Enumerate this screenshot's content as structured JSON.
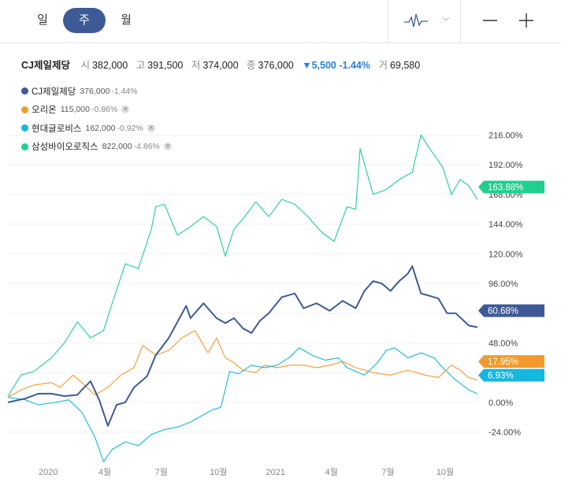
{
  "periods": [
    {
      "label": "일"
    },
    {
      "label": "주",
      "active": true
    },
    {
      "label": "월"
    }
  ],
  "toolbar": {
    "chart_type_icon": "line-wave-icon",
    "dropdown_icon": "chevron-down-icon",
    "zoom_out_icon": "minus-icon",
    "zoom_in_icon": "plus-icon"
  },
  "summary": {
    "name": "CJ제일제당",
    "open_label": "시",
    "open": "382,000",
    "high_label": "고",
    "high": "391,500",
    "low_label": "저",
    "low": "374,000",
    "close_label": "종",
    "close": "376,000",
    "change": "▼5,500 -1.44%",
    "volume_label": "거",
    "volume": "69,580"
  },
  "legend": [
    {
      "name": "CJ제일제당",
      "value": "376,000",
      "change": "-1.44%",
      "color": "#3e5a96",
      "removable": false
    },
    {
      "name": "오리온",
      "value": "115,000",
      "change": "-0.86%",
      "color": "#f39a2c",
      "removable": true
    },
    {
      "name": "현대글로비스",
      "value": "162,000",
      "change": "-0.92%",
      "color": "#14b7dd",
      "removable": true
    },
    {
      "name": "삼성바이오로직스",
      "value": "822,000",
      "change": "-4.86%",
      "color": "#1fcf8e",
      "removable": true
    }
  ],
  "chart_data": {
    "type": "line",
    "y_unit": "%",
    "ylim": [
      -44,
      236
    ],
    "y_ticks": [
      "216.00%",
      "192.00%",
      "168.00%",
      "144.00%",
      "120.00%",
      "96.00%",
      "72.00%",
      "48.00%",
      "24.00%",
      "0.00%",
      "-24.00%"
    ],
    "y_tick_values": [
      216,
      192,
      168,
      144,
      120,
      96,
      72,
      48,
      24,
      0,
      -24
    ],
    "x_range": [
      "2019-10-28",
      "2021-11-22"
    ],
    "x_ticks": [
      {
        "label": "2020",
        "date": "2020-01-01"
      },
      {
        "label": "4월",
        "date": "2020-04-01"
      },
      {
        "label": "7월",
        "date": "2020-07-01"
      },
      {
        "label": "10월",
        "date": "2020-10-01"
      },
      {
        "label": "2021",
        "date": "2021-01-01"
      },
      {
        "label": "4월",
        "date": "2021-04-01"
      },
      {
        "label": "7월",
        "date": "2021-07-01"
      },
      {
        "label": "10월",
        "date": "2021-10-01"
      }
    ],
    "grid": "horizontal",
    "series": [
      {
        "name": "CJ제일제당",
        "color": "#3e5a96",
        "last_label": "60.68%",
        "points": [
          [
            "2019-10-28",
            0
          ],
          [
            "2019-11-25",
            3
          ],
          [
            "2019-12-16",
            7
          ],
          [
            "2020-01-06",
            7
          ],
          [
            "2020-01-27",
            5
          ],
          [
            "2020-02-17",
            6
          ],
          [
            "2020-02-24",
            10
          ],
          [
            "2020-03-09",
            17
          ],
          [
            "2020-03-23",
            2
          ],
          [
            "2020-04-06",
            -19
          ],
          [
            "2020-04-20",
            -2
          ],
          [
            "2020-05-04",
            0
          ],
          [
            "2020-05-18",
            12
          ],
          [
            "2020-06-08",
            21
          ],
          [
            "2020-06-22",
            38
          ],
          [
            "2020-07-13",
            52
          ],
          [
            "2020-08-10",
            78
          ],
          [
            "2020-08-17",
            68
          ],
          [
            "2020-09-07",
            80
          ],
          [
            "2020-09-28",
            68
          ],
          [
            "2020-10-12",
            64
          ],
          [
            "2020-10-26",
            68
          ],
          [
            "2020-11-09",
            60
          ],
          [
            "2020-11-23",
            56
          ],
          [
            "2020-12-07",
            66
          ],
          [
            "2020-12-21",
            72
          ],
          [
            "2021-01-11",
            85
          ],
          [
            "2021-02-01",
            88
          ],
          [
            "2021-02-15",
            76
          ],
          [
            "2021-03-08",
            80
          ],
          [
            "2021-03-29",
            74
          ],
          [
            "2021-04-19",
            82
          ],
          [
            "2021-05-10",
            76
          ],
          [
            "2021-05-24",
            90
          ],
          [
            "2021-06-07",
            98
          ],
          [
            "2021-06-21",
            96
          ],
          [
            "2021-07-05",
            90
          ],
          [
            "2021-07-19",
            98
          ],
          [
            "2021-08-02",
            104
          ],
          [
            "2021-08-09",
            110
          ],
          [
            "2021-08-23",
            88
          ],
          [
            "2021-09-06",
            86
          ],
          [
            "2021-09-20",
            84
          ],
          [
            "2021-10-04",
            72
          ],
          [
            "2021-10-18",
            72
          ],
          [
            "2021-11-08",
            62
          ],
          [
            "2021-11-22",
            60.68
          ]
        ]
      },
      {
        "name": "오리온",
        "color": "#f39a2c",
        "last_label": "17.95%",
        "points": [
          [
            "2019-10-28",
            4
          ],
          [
            "2019-11-18",
            10
          ],
          [
            "2019-12-09",
            14
          ],
          [
            "2020-01-06",
            16
          ],
          [
            "2020-01-20",
            12
          ],
          [
            "2020-02-10",
            22
          ],
          [
            "2020-02-24",
            16
          ],
          [
            "2020-03-16",
            6
          ],
          [
            "2020-04-06",
            12
          ],
          [
            "2020-04-27",
            22
          ],
          [
            "2020-05-18",
            28
          ],
          [
            "2020-06-01",
            46
          ],
          [
            "2020-06-22",
            38
          ],
          [
            "2020-07-13",
            42
          ],
          [
            "2020-08-03",
            52
          ],
          [
            "2020-08-24",
            58
          ],
          [
            "2020-09-14",
            40
          ],
          [
            "2020-09-28",
            52
          ],
          [
            "2020-10-12",
            36
          ],
          [
            "2020-10-26",
            32
          ],
          [
            "2020-11-09",
            26
          ],
          [
            "2020-11-30",
            24
          ],
          [
            "2020-12-14",
            30
          ],
          [
            "2021-01-04",
            28
          ],
          [
            "2021-01-25",
            30
          ],
          [
            "2021-02-15",
            30
          ],
          [
            "2021-03-08",
            28
          ],
          [
            "2021-03-29",
            30
          ],
          [
            "2021-04-19",
            33
          ],
          [
            "2021-05-10",
            28
          ],
          [
            "2021-06-07",
            24
          ],
          [
            "2021-07-05",
            22
          ],
          [
            "2021-08-02",
            26
          ],
          [
            "2021-08-30",
            22
          ],
          [
            "2021-09-20",
            20
          ],
          [
            "2021-10-11",
            30
          ],
          [
            "2021-10-25",
            26
          ],
          [
            "2021-11-08",
            20
          ],
          [
            "2021-11-22",
            17.95
          ]
        ]
      },
      {
        "name": "현대글로비스",
        "color": "#14b7dd",
        "last_label": "6.93%",
        "points": [
          [
            "2019-10-28",
            4
          ],
          [
            "2019-11-25",
            2
          ],
          [
            "2019-12-16",
            -2
          ],
          [
            "2020-01-13",
            0
          ],
          [
            "2020-02-03",
            2
          ],
          [
            "2020-02-24",
            -8
          ],
          [
            "2020-03-16",
            -28
          ],
          [
            "2020-03-30",
            -48
          ],
          [
            "2020-04-13",
            -38
          ],
          [
            "2020-05-04",
            -32
          ],
          [
            "2020-05-25",
            -35
          ],
          [
            "2020-06-15",
            -26
          ],
          [
            "2020-07-06",
            -22
          ],
          [
            "2020-07-27",
            -20
          ],
          [
            "2020-08-17",
            -16
          ],
          [
            "2020-09-07",
            -10
          ],
          [
            "2020-09-21",
            -6
          ],
          [
            "2020-10-05",
            -4
          ],
          [
            "2020-10-19",
            25
          ],
          [
            "2020-11-02",
            23
          ],
          [
            "2020-11-23",
            30
          ],
          [
            "2020-12-14",
            28
          ],
          [
            "2021-01-04",
            30
          ],
          [
            "2021-01-25",
            37
          ],
          [
            "2021-02-08",
            44
          ],
          [
            "2021-03-01",
            38
          ],
          [
            "2021-03-22",
            34
          ],
          [
            "2021-04-12",
            36
          ],
          [
            "2021-04-26",
            28
          ],
          [
            "2021-05-24",
            22
          ],
          [
            "2021-06-14",
            32
          ],
          [
            "2021-06-28",
            42
          ],
          [
            "2021-07-12",
            44
          ],
          [
            "2021-08-02",
            36
          ],
          [
            "2021-08-23",
            40
          ],
          [
            "2021-09-13",
            36
          ],
          [
            "2021-09-27",
            28
          ],
          [
            "2021-10-18",
            18
          ],
          [
            "2021-11-08",
            10
          ],
          [
            "2021-11-22",
            6.93
          ]
        ]
      },
      {
        "name": "삼성바이오로직스",
        "color": "#1fcf8e",
        "last_label": "163.88%",
        "points": [
          [
            "2019-10-28",
            5
          ],
          [
            "2019-11-18",
            22
          ],
          [
            "2019-12-09",
            25
          ],
          [
            "2020-01-06",
            36
          ],
          [
            "2020-01-27",
            48
          ],
          [
            "2020-02-17",
            65
          ],
          [
            "2020-03-09",
            52
          ],
          [
            "2020-03-30",
            58
          ],
          [
            "2020-04-13",
            80
          ],
          [
            "2020-05-04",
            112
          ],
          [
            "2020-05-25",
            108
          ],
          [
            "2020-06-15",
            140
          ],
          [
            "2020-06-22",
            158
          ],
          [
            "2020-07-06",
            160
          ],
          [
            "2020-07-27",
            135
          ],
          [
            "2020-08-17",
            142
          ],
          [
            "2020-09-07",
            150
          ],
          [
            "2020-09-28",
            142
          ],
          [
            "2020-10-12",
            118
          ],
          [
            "2020-10-26",
            140
          ],
          [
            "2020-11-09",
            148
          ],
          [
            "2020-11-30",
            162
          ],
          [
            "2020-12-21",
            150
          ],
          [
            "2021-01-11",
            164
          ],
          [
            "2021-02-01",
            160
          ],
          [
            "2021-02-22",
            150
          ],
          [
            "2021-03-15",
            138
          ],
          [
            "2021-04-05",
            130
          ],
          [
            "2021-04-26",
            158
          ],
          [
            "2021-05-10",
            156
          ],
          [
            "2021-05-17",
            205
          ],
          [
            "2021-06-07",
            168
          ],
          [
            "2021-06-28",
            172
          ],
          [
            "2021-07-19",
            180
          ],
          [
            "2021-08-09",
            186
          ],
          [
            "2021-08-23",
            216
          ],
          [
            "2021-09-06",
            205
          ],
          [
            "2021-09-27",
            190
          ],
          [
            "2021-10-11",
            168
          ],
          [
            "2021-10-25",
            180
          ],
          [
            "2021-11-08",
            175
          ],
          [
            "2021-11-22",
            163.88
          ]
        ]
      }
    ]
  }
}
